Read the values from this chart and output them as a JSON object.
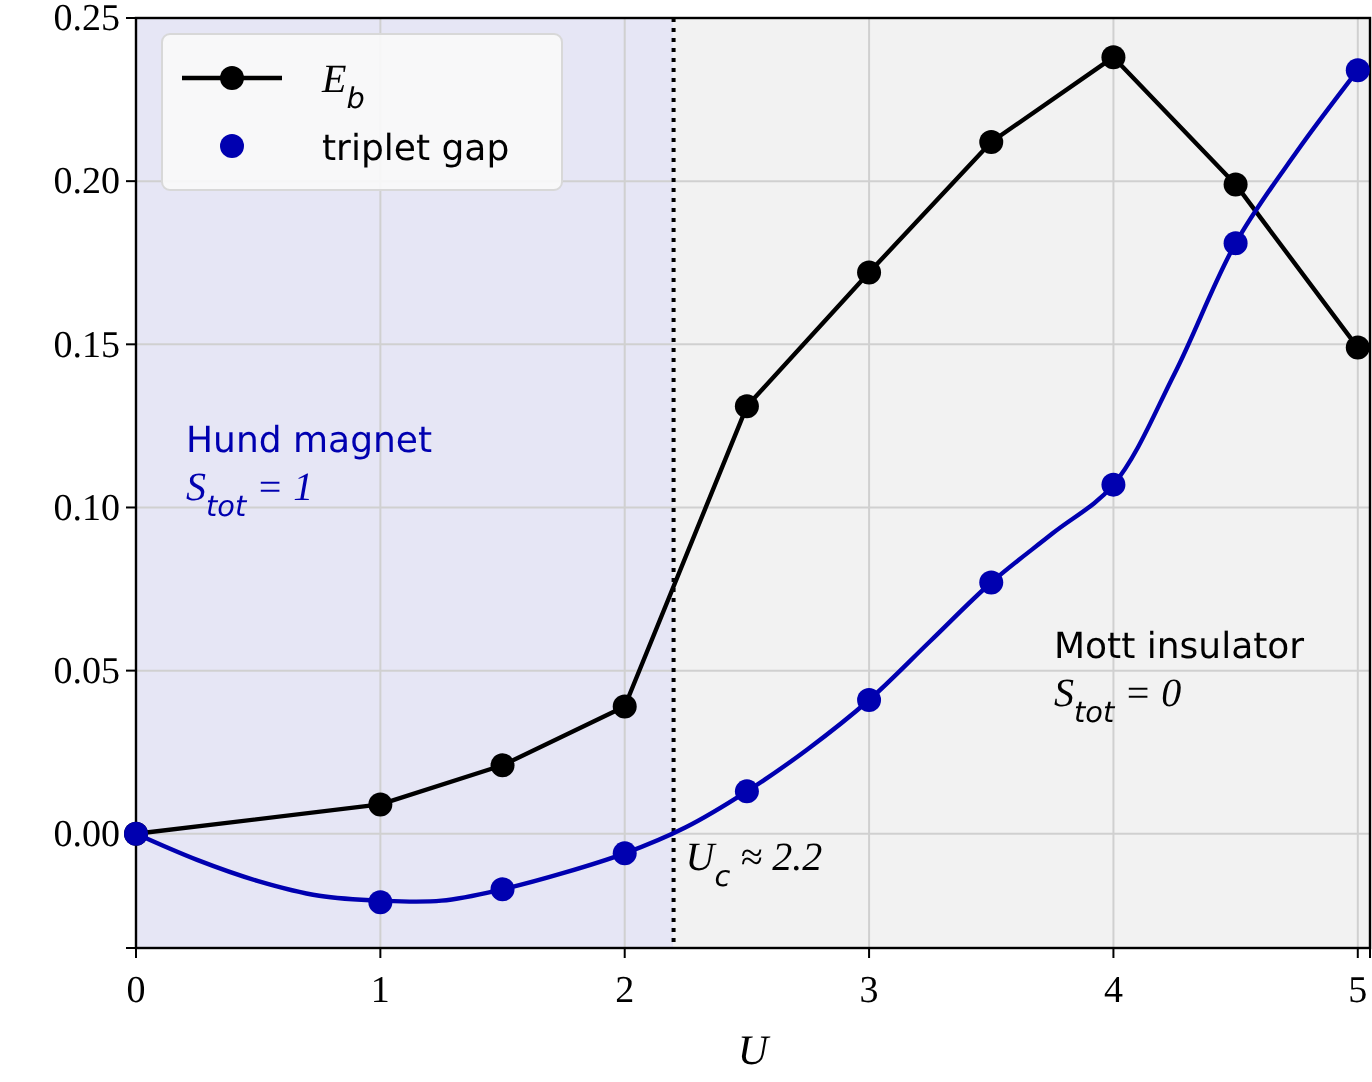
{
  "chart_data": {
    "type": "line",
    "xlabel": "U",
    "xlim": [
      0,
      5.05
    ],
    "xticks": [
      0,
      1,
      2,
      3,
      4,
      5
    ],
    "ylim": [
      -0.035,
      0.25
    ],
    "yticks": [
      {
        "value": 0,
        "label": "0.00"
      },
      {
        "value": 0.05,
        "label": "0.05"
      },
      {
        "value": 0.1,
        "label": "0.10"
      },
      {
        "value": 0.15,
        "label": "0.15"
      },
      {
        "value": 0.2,
        "label": "0.20"
      },
      {
        "value": 0.25,
        "label": "0.25"
      }
    ],
    "grid": true,
    "legend": "top left",
    "marker": "circle",
    "bands": [
      {
        "axis": "x",
        "from": 0,
        "to": 2.2,
        "color": "#e6e6f5",
        "label": "Hund magnet\nS$_{tot}$ = 1"
      },
      {
        "axis": "x",
        "from": 2.2,
        "to": 5.05,
        "color": "#f2f2f2",
        "label": "Mott insulator\nS$_{tot}$ = 0"
      }
    ],
    "ref_lines": [
      {
        "axis": "x",
        "value": 2.2,
        "label": "U$_{c}$ ≈ 2.2",
        "color": "#000000",
        "line_style": "dotted"
      }
    ],
    "series": [
      {
        "name": "E$_{b}$",
        "color": "#000000",
        "x": [
          0,
          1,
          1.5,
          2,
          2.5,
          3,
          3.5,
          4,
          4.5,
          5
        ],
        "values": [
          0,
          0.009,
          0.021,
          0.039,
          0.131,
          0.172,
          0.212,
          0.238,
          0.199,
          0.149
        ]
      },
      {
        "marker": "none",
        "color": "#0000b0",
        "x": [
          0,
          0.25,
          0.5,
          0.75,
          1,
          1.25,
          1.5,
          1.75,
          2,
          2.25,
          2.5,
          2.75,
          3,
          3.25,
          3.5,
          3.75,
          4,
          4.25,
          4.5,
          4.75,
          5
        ],
        "values": [
          0,
          -0.008,
          -0.0145,
          -0.019,
          -0.0205,
          -0.0205,
          -0.017,
          -0.012,
          -0.006,
          0.002,
          0.013,
          0.026,
          0.041,
          0.059,
          0.077,
          0.092,
          0.107,
          0.141,
          0.181,
          0.209,
          0.234
        ]
      },
      {
        "name": "triplet gap",
        "type": "scatter",
        "color": "#0000b0",
        "x": [
          0,
          1,
          1.5,
          2,
          2.5,
          3,
          3.5,
          4,
          4.5,
          5
        ],
        "values": [
          0,
          -0.021,
          -0.017,
          -0.006,
          0.013,
          0.041,
          0.077,
          0.107,
          0.181,
          0.234
        ]
      }
    ]
  }
}
